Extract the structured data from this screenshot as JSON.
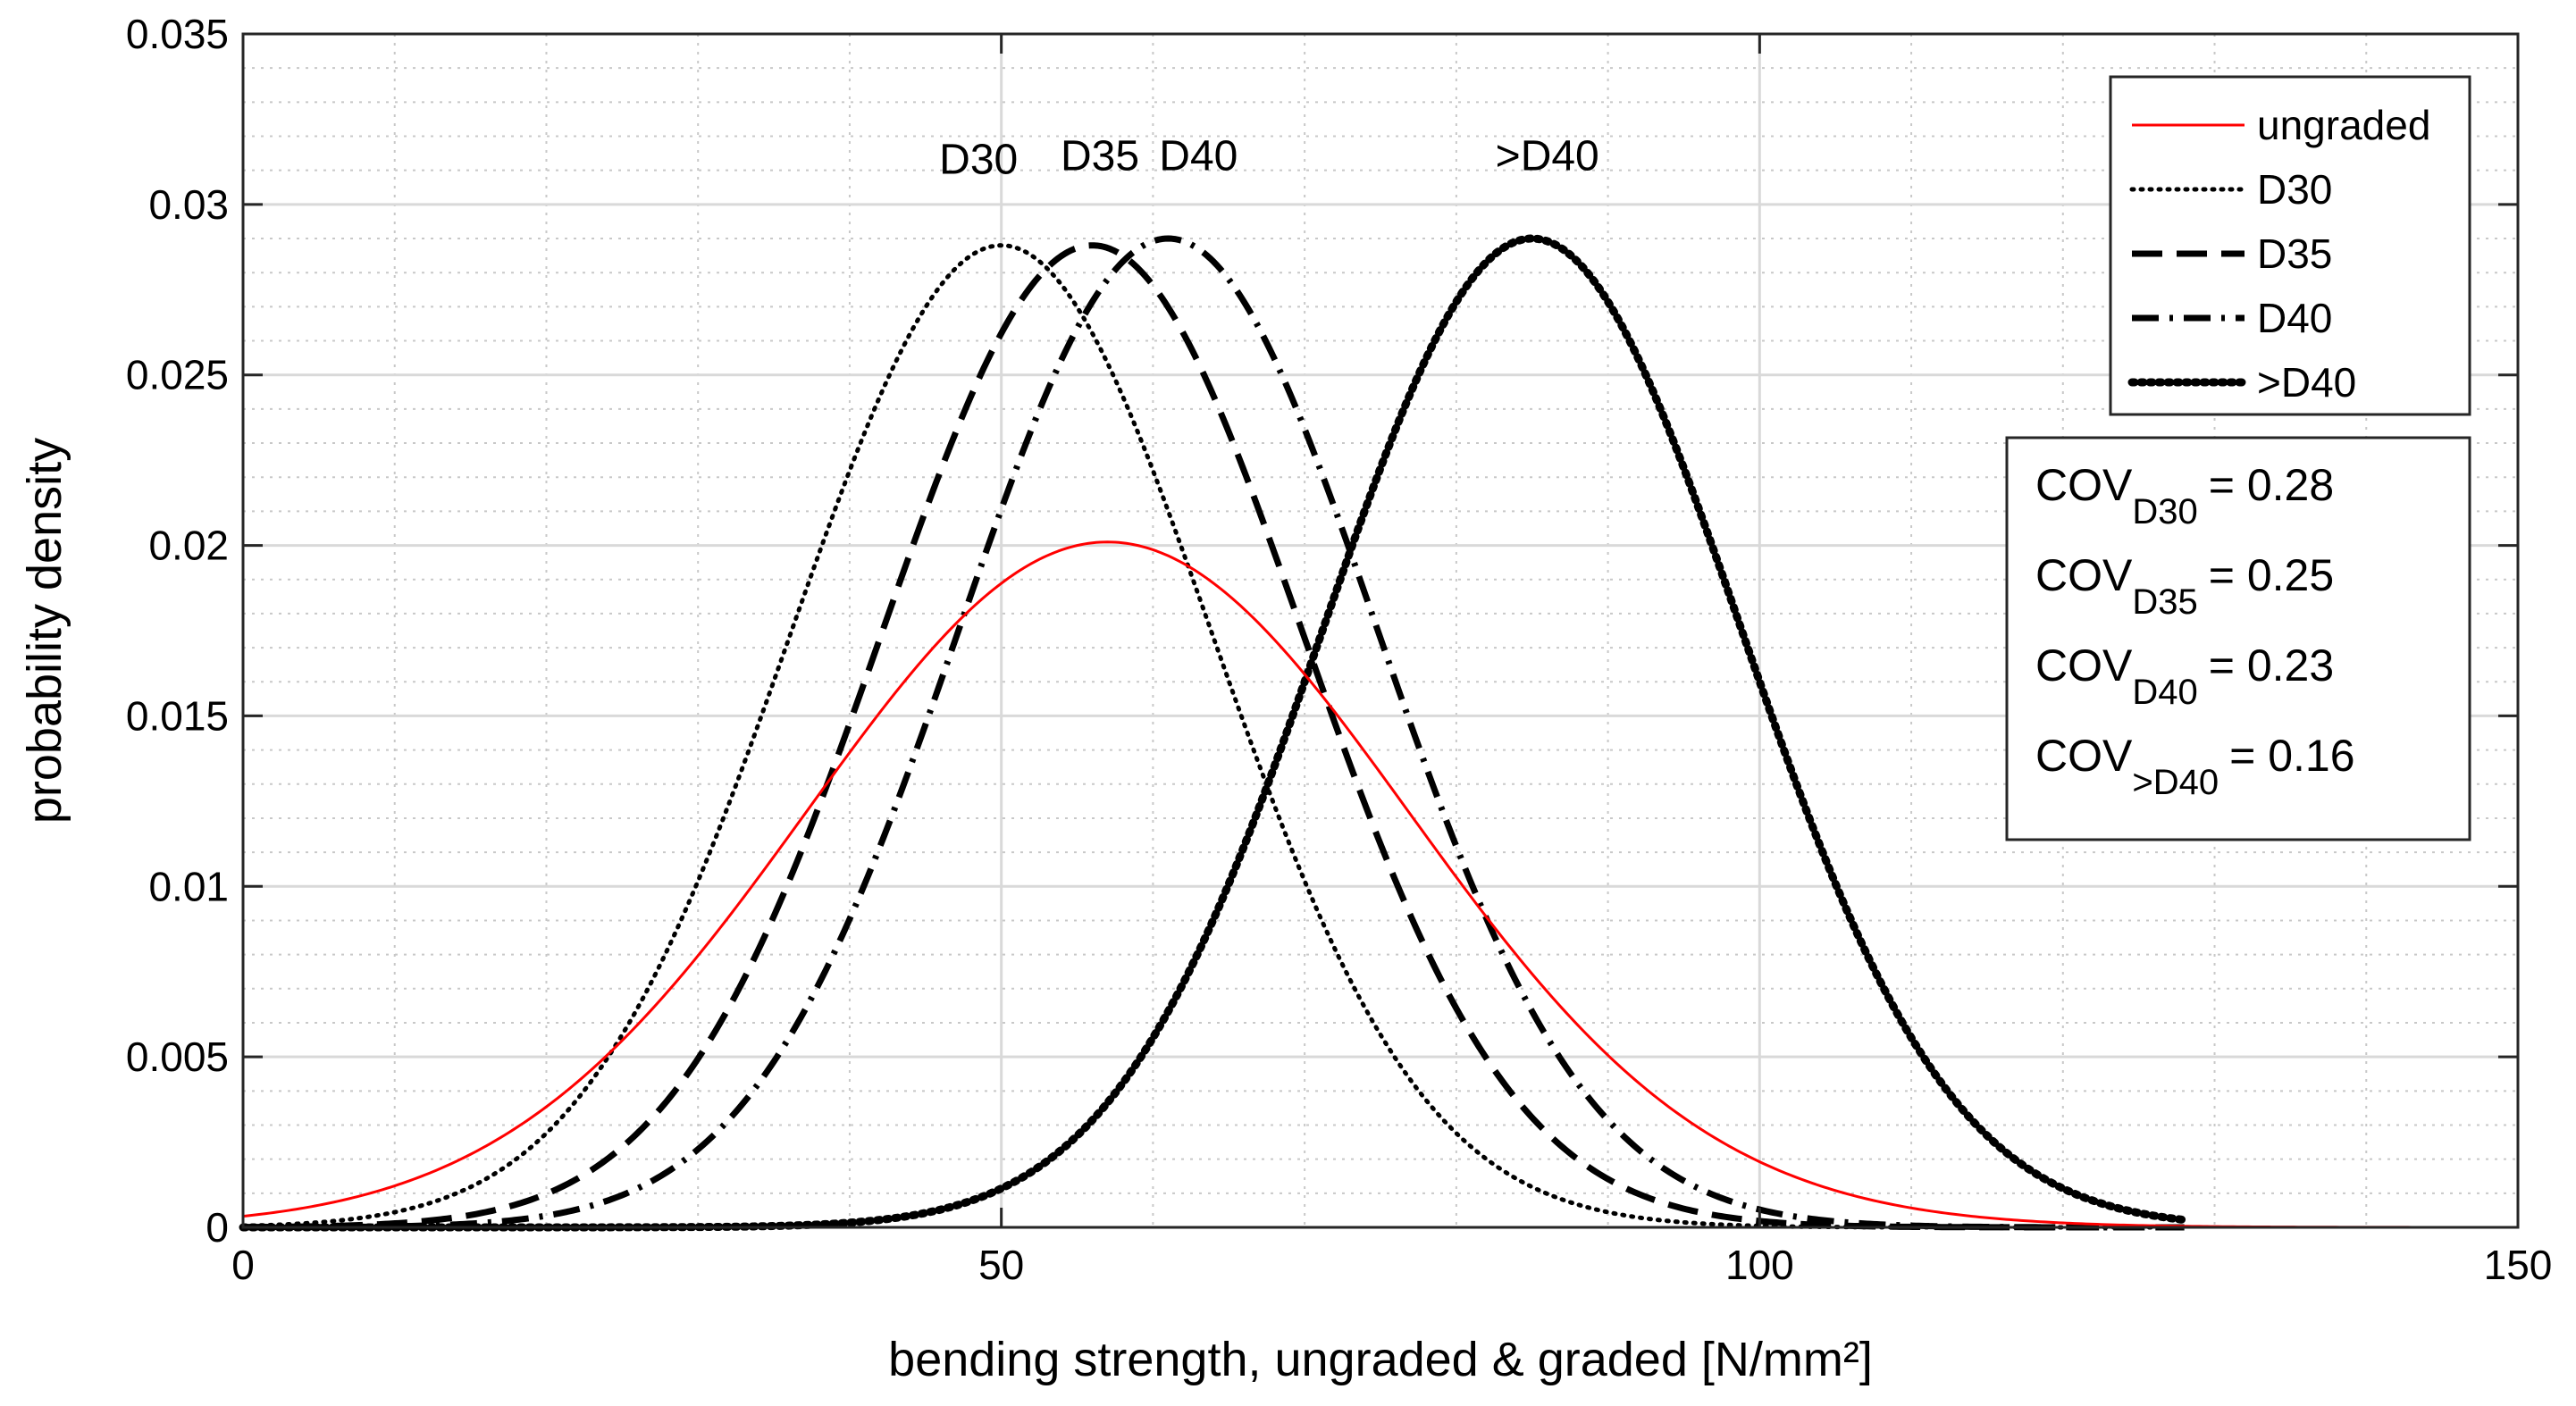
{
  "chart_data": {
    "type": "line",
    "title": "",
    "xlabel": "bending strength, ungraded & graded [N/mm²]",
    "ylabel": "probability density",
    "xlim": [
      0,
      150
    ],
    "ylim": [
      0,
      0.035
    ],
    "xticks": [
      0,
      50,
      100,
      150
    ],
    "xtick_labels": [
      "0",
      "50",
      "100",
      "150"
    ],
    "yticks": [
      0,
      0.005,
      0.01,
      0.015,
      0.02,
      0.025,
      0.03,
      0.035
    ],
    "ytick_labels": [
      "0",
      "0.005",
      "0.01",
      "0.015",
      "0.02",
      "0.025",
      "0.03",
      "0.035"
    ],
    "grid": true,
    "minor_grid": true,
    "legend_position": "top-right",
    "series": [
      {
        "name": "ungraded",
        "distribution": "normal",
        "mean": 57,
        "peak_density": 0.0201,
        "x_range": [
          0,
          150
        ],
        "color": "#ff0000",
        "style": "solid"
      },
      {
        "name": "D30",
        "distribution": "normal",
        "mean": 50,
        "peak_density": 0.0288,
        "x_range": [
          0,
          128
        ],
        "color": "#000000",
        "style": "dotted"
      },
      {
        "name": "D35",
        "distribution": "normal",
        "mean": 56,
        "peak_density": 0.0288,
        "x_range": [
          0,
          128
        ],
        "color": "#000000",
        "style": "dashed"
      },
      {
        "name": "D40",
        "distribution": "normal",
        "mean": 61,
        "peak_density": 0.029,
        "x_range": [
          0,
          128
        ],
        "color": "#000000",
        "style": "dashdot"
      },
      {
        "name": ">D40",
        "distribution": "normal",
        "mean": 85,
        "peak_density": 0.029,
        "x_range": [
          0,
          128
        ],
        "color": "#000000",
        "style": "dense-dotted"
      }
    ],
    "annotations": [
      {
        "text": "D30",
        "x": 48.5,
        "y": 0.0309
      },
      {
        "text": "D35",
        "x": 56.5,
        "y": 0.031
      },
      {
        "text": "D40",
        "x": 63,
        "y": 0.031
      },
      {
        "text": ">D40",
        "x": 86,
        "y": 0.031
      }
    ],
    "cov_box": [
      {
        "base": "COV",
        "sub": "D30",
        "value": "= 0.28"
      },
      {
        "base": "COV",
        "sub": "D35",
        "value": "= 0.25"
      },
      {
        "base": "COV",
        "sub": "D40",
        "value": "= 0.23"
      },
      {
        "base": "COV",
        "sub": ">D40",
        "value": "= 0.16"
      }
    ]
  }
}
